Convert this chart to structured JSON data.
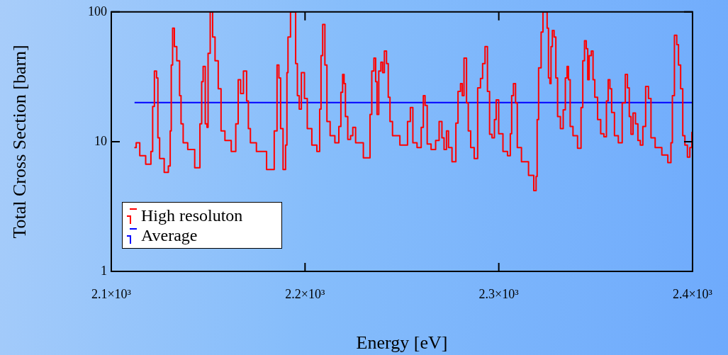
{
  "chart_data": {
    "type": "step",
    "xlabel": "Energy [eV]",
    "ylabel": "Total Cross Section [barn]",
    "log": "y",
    "grid": false,
    "legend": "bottom left",
    "marker": "none",
    "xlim": [
      2100,
      2400
    ],
    "xticks": [
      {
        "value": 2100,
        "label": "2.1×10³"
      },
      {
        "value": 2200,
        "label": "2.2×10³"
      },
      {
        "value": 2300,
        "label": "2.3×10³"
      },
      {
        "value": 2400,
        "label": "2.4×10³"
      }
    ],
    "ylim": [
      1,
      100
    ],
    "yticks": [
      1,
      10,
      100
    ],
    "series": [
      {
        "name": "High resoluton",
        "color": "#ff0000",
        "x": [
          2111.9,
          2113.8,
          2115.6,
          2119.9,
          2121,
          2121.7,
          2122.8,
          2123.9,
          2124.2,
          2125.7,
          2128.9,
          2130,
          2130.8,
          2131.1,
          2132.2,
          2132.9,
          2134.7,
          2135.8,
          2136.2,
          2138,
          2140.9,
          2145.2,
          2146.3,
          2147,
          2147.8,
          2149.2,
          2149.6,
          2150.3,
          2151.8,
          2152.8,
          2154.3,
          2156.1,
          2157.2,
          2160.1,
          2163.7,
          2164.8,
          2166.2,
          2167.3,
          2169.1,
          2170.6,
          2170.9,
          2172.7,
          2177.1,
          2183.2,
          2185,
          2186.1,
          2186.9,
          2187.9,
          2189.4,
          2190.5,
          2190.8,
          2191.6,
          2193.4,
          2194.8,
          2195.5,
          2196.6,
          2197.4,
          2198.8,
          2200.6,
          2201.7,
          2205.3,
          2206.9,
          2208.2,
          2208.3,
          2209.9,
          2210.6,
          2212,
          2213.9,
          2216.9,
          2218,
          2219,
          2219.8,
          2220.5,
          2221.2,
          2222.9,
          2224.1,
          2225.2,
          2227,
          2233.2,
          2233.9,
          2235,
          2236.1,
          2236.8,
          2237.5,
          2238.6,
          2239.7,
          2240.4,
          2241.5,
          2242.6,
          2243.3,
          2244.4,
          2245.9,
          2252,
          2253.8,
          2254.9,
          2256.4,
          2259.2,
          2260.7,
          2261.4,
          2262.5,
          2263.6,
          2266.5,
          2268.3,
          2270.1,
          2271.2,
          2272.3,
          2273.7,
          2274.4,
          2277.3,
          2278.4,
          2279.5,
          2281,
          2281.3,
          2282.8,
          2283.9,
          2284.6,
          2286.4,
          2288.2,
          2290,
          2291.1,
          2292.2,
          2293.6,
          2294.7,
          2295.8,
          2297.2,
          2298.3,
          2299,
          2300.9,
          2303.4,
          2305.6,
          2306.3,
          2307,
          2308.1,
          2309.2,
          2309.9,
          2313.5,
          2317.2,
          2318.9,
          2319.6,
          2320,
          2321.1,
          2322.6,
          2323,
          2324.8,
          2325.1,
          2326.2,
          2326.6,
          2327.3,
          2328,
          2329.1,
          2329.8,
          2330.9,
          2332.7,
          2333.8,
          2334.9,
          2335.6,
          2336.3,
          2337.4,
          2339.2,
          2342.1,
          2342.8,
          2343.9,
          2344.6,
          2345.7,
          2346.1,
          2347.2,
          2348.3,
          2349,
          2350.1,
          2351.9,
          2353.3,
          2355.2,
          2355.9,
          2357,
          2357.7,
          2358.8,
          2360.6,
          2362.8,
          2364.6,
          2366,
          2366.8,
          2367.9,
          2368.6,
          2370,
          2371.1,
          2372.5,
          2373.6,
          2375.1,
          2376.5,
          2378,
          2379.1,
          2382.3,
          2386,
          2388.5,
          2389.2,
          2390,
          2391.3,
          2392.4,
          2393.1,
          2394.6,
          2395.3,
          2396.8,
          2397.9,
          2399.3,
          2400
        ],
        "values": [
          9.0,
          9.8,
          7.8,
          6.7,
          8.4,
          18.7,
          35,
          31,
          10.7,
          7.4,
          5.8,
          6.5,
          12.1,
          39,
          75,
          54,
          42,
          22.6,
          13.7,
          9.8,
          8.7,
          6.3,
          13.7,
          29,
          38,
          13.7,
          12.9,
          48,
          100,
          64,
          42,
          25.6,
          12.1,
          10.2,
          8.4,
          13.7,
          30,
          23.5,
          35,
          20.6,
          12.6,
          9.8,
          8.4,
          6.1,
          12.1,
          39,
          31,
          12.6,
          6.1,
          9.4,
          34,
          64,
          100,
          100,
          40,
          22.6,
          17.8,
          34,
          21.5,
          12.6,
          9.4,
          8.4,
          17.8,
          46,
          80,
          39,
          14.3,
          11.1,
          9.8,
          13.1,
          24,
          33,
          28,
          15.6,
          10.4,
          11.1,
          12.9,
          9.8,
          7.5,
          16.2,
          35,
          44,
          29,
          16.2,
          35,
          41,
          34,
          50,
          40,
          22,
          14.3,
          11.1,
          9.4,
          14.3,
          18.3,
          9.8,
          9.0,
          12.9,
          22.6,
          19,
          9.6,
          8.7,
          10.2,
          14.3,
          10.7,
          8.7,
          12.1,
          9.0,
          7.0,
          13.9,
          24.4,
          28,
          22.6,
          44,
          19.9,
          12.1,
          9.0,
          7.4,
          26,
          30.7,
          40,
          54,
          24.4,
          11.4,
          10.7,
          14.8,
          21,
          11.5,
          8.4,
          7.8,
          11.5,
          22.6,
          28,
          19.9,
          9.0,
          7.0,
          5.5,
          4.2,
          5.4,
          14.8,
          37,
          70,
          100,
          100,
          75,
          31,
          28,
          54,
          72,
          64,
          31,
          15.6,
          12.6,
          17.6,
          31,
          38,
          30,
          13.1,
          11.1,
          8.9,
          18.3,
          42,
          60,
          52,
          30,
          46,
          50,
          30,
          22,
          14.8,
          11.5,
          10.9,
          20.6,
          30,
          25.6,
          16.8,
          11.1,
          9.8,
          19.9,
          33,
          26,
          15.6,
          11.4,
          16.6,
          13.7,
          10.2,
          9.4,
          13.1,
          26.6,
          21.5,
          10.7,
          9.0,
          7.9,
          6.9,
          9.8,
          22.6,
          66,
          56,
          39,
          25.6,
          11.1,
          9.4,
          7.6,
          9.0,
          11.8
        ]
      },
      {
        "name": "Average",
        "color": "#0000ff",
        "x": [
          2112,
          2400
        ],
        "values": [
          20,
          20
        ]
      }
    ]
  }
}
